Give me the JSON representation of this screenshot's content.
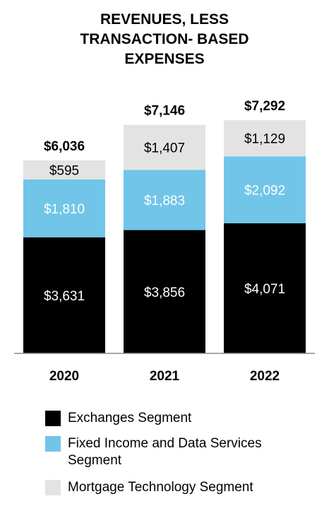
{
  "chart_data": {
    "type": "stacked-bar",
    "title_lines": [
      "REVENUES, LESS",
      "TRANSACTION- BASED",
      "EXPENSES"
    ],
    "categories": [
      "2020",
      "2021",
      "2022"
    ],
    "totals": [
      "$6,036",
      "$7,146",
      "$7,292"
    ],
    "series": [
      {
        "name": "Exchanges Segment",
        "color": "#000000",
        "text_color": "#ffffff",
        "values": [
          3631,
          3856,
          4071
        ],
        "labels": [
          "$3,631",
          "$3,856",
          "$4,071"
        ]
      },
      {
        "name": "Fixed Income and Data Services\n Segment",
        "color": "#71c5e8",
        "text_color": "#ffffff",
        "values": [
          1810,
          1883,
          2092
        ],
        "labels": [
          "$1,810",
          "$1,883",
          "$2,092"
        ]
      },
      {
        "name": "Mortgage Technology Segment",
        "color": "#e3e3e3",
        "text_color": "#000000",
        "values": [
          595,
          1407,
          1129
        ],
        "labels": [
          "$595",
          "$1,407",
          "$1,129"
        ]
      }
    ],
    "legend": "bottom",
    "grid": false
  }
}
